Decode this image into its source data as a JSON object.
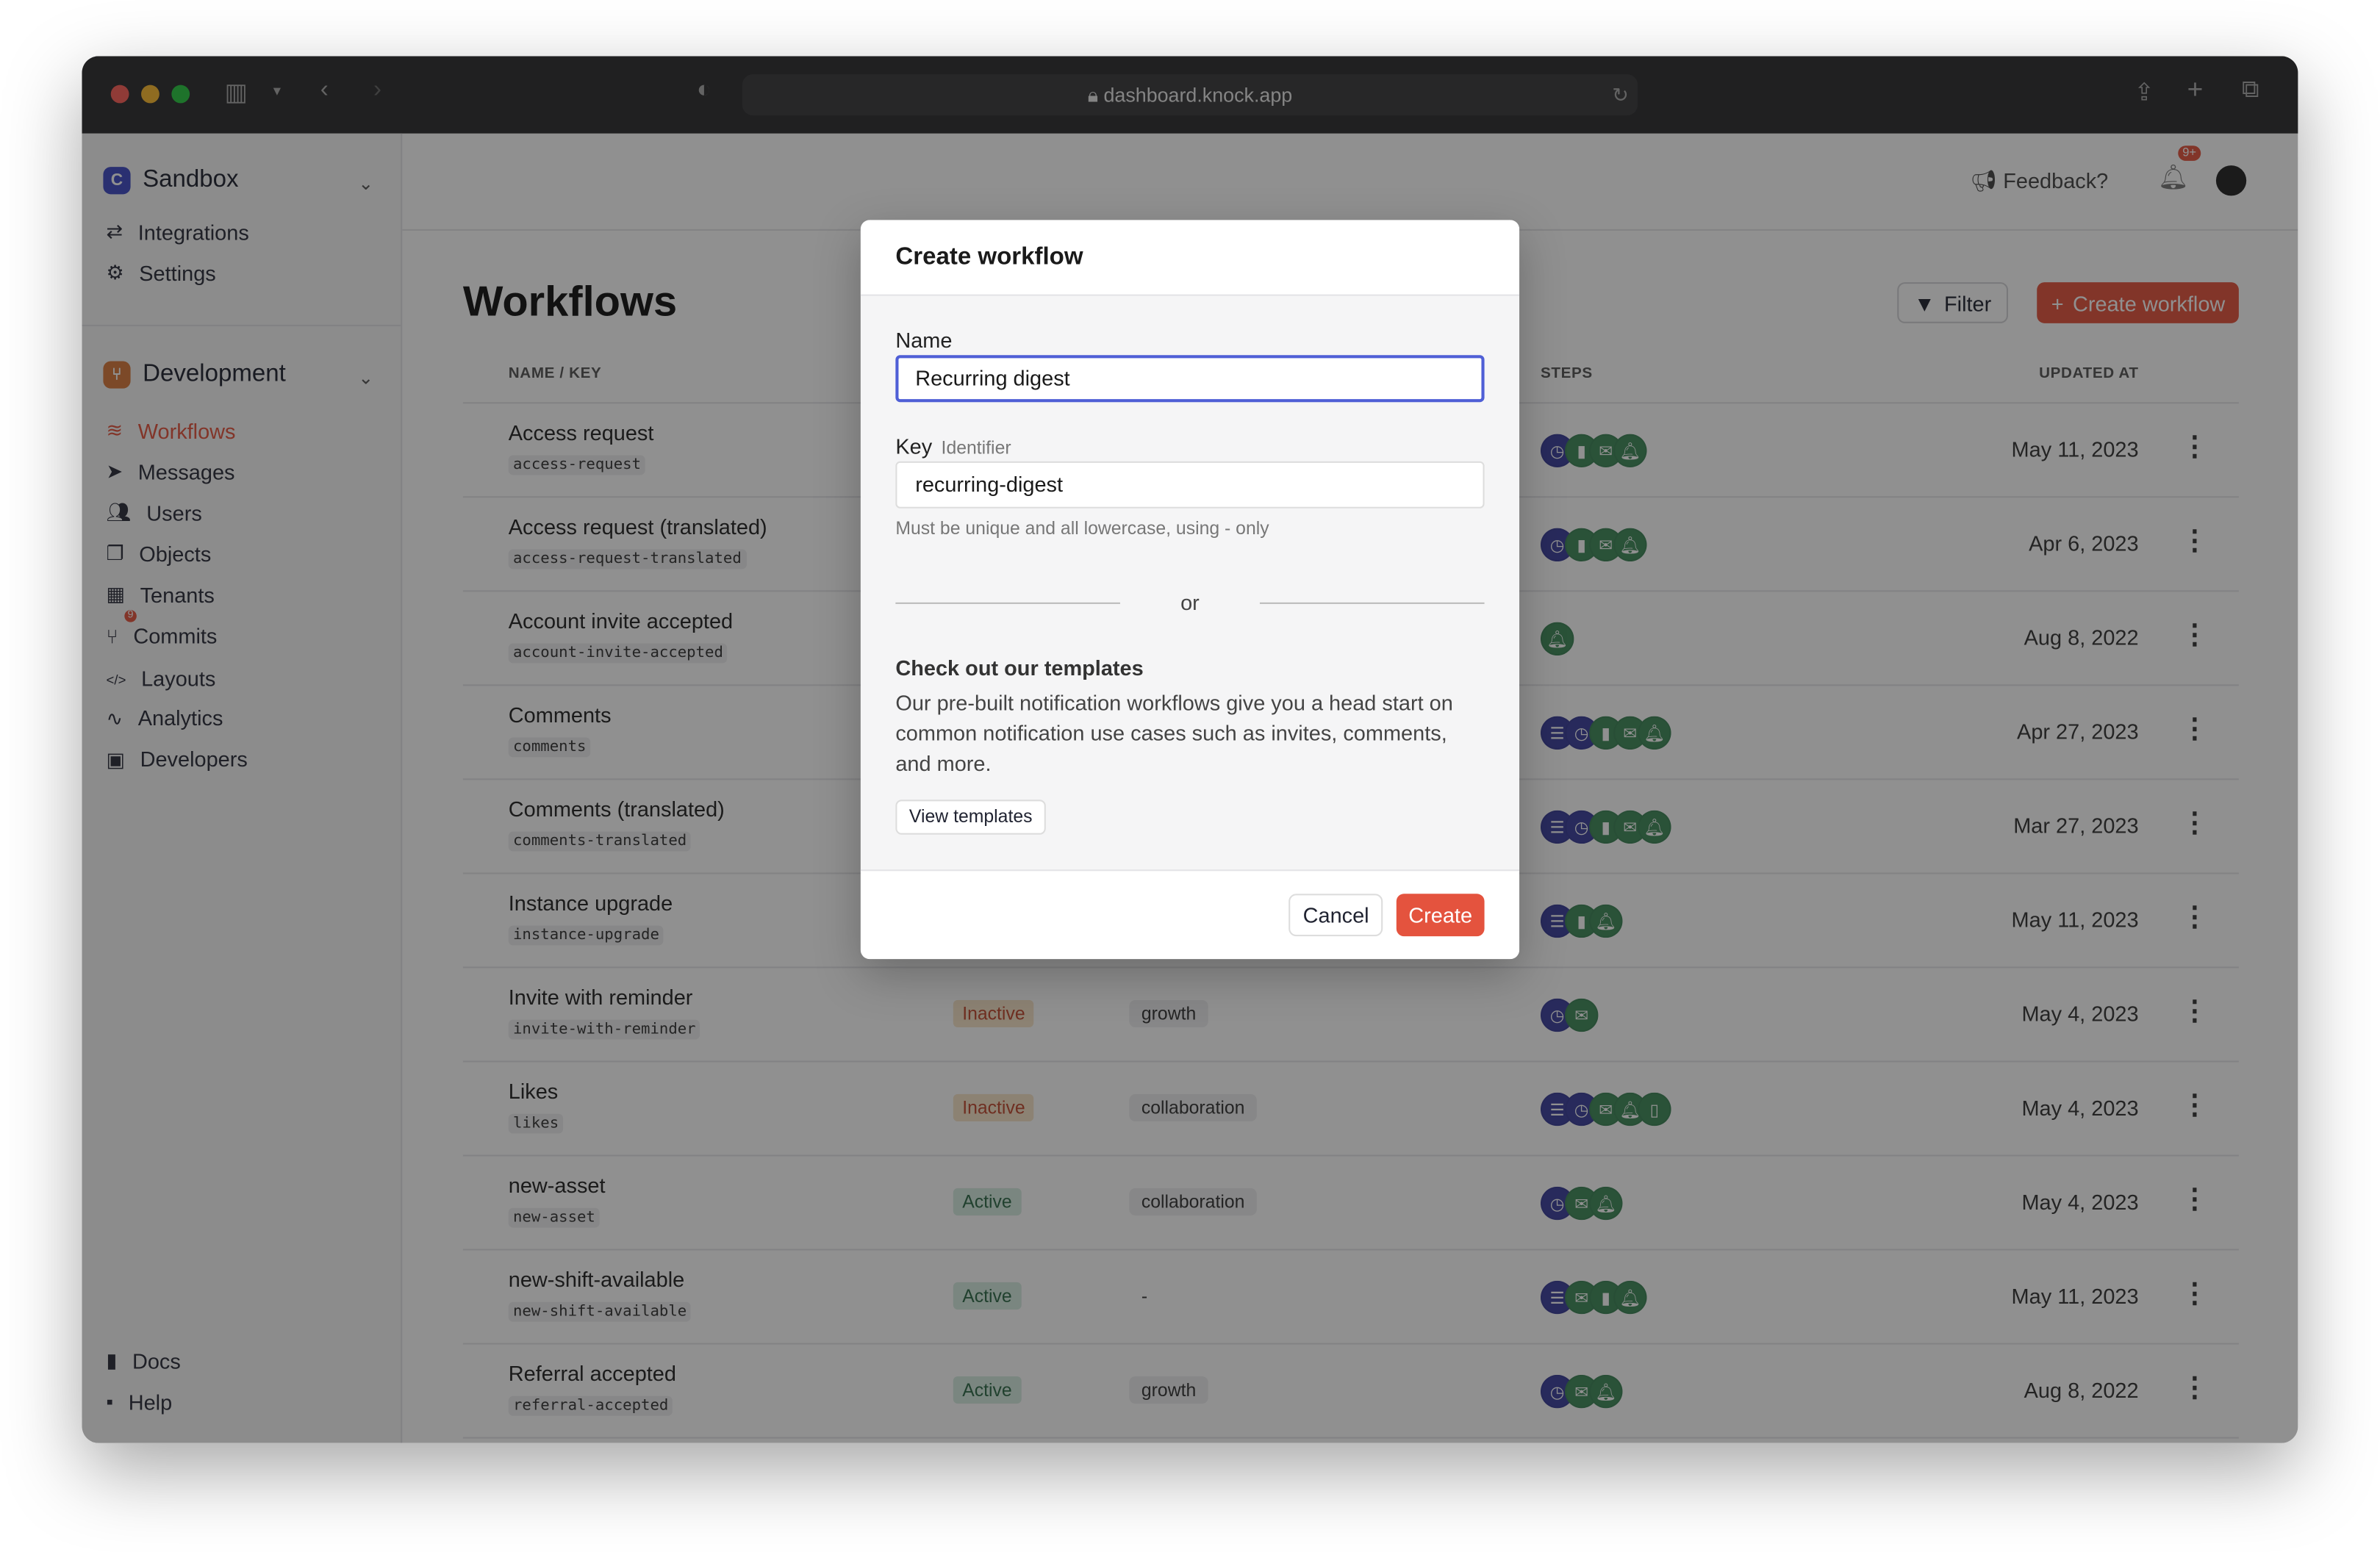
{
  "browser": {
    "url": "dashboard.knock.app"
  },
  "sidebar": {
    "workspace": "Sandbox",
    "workspace_logo": "C",
    "top_items": [
      {
        "label": "Integrations",
        "icon": "arrows-exchange-icon"
      },
      {
        "label": "Settings",
        "icon": "gear-icon"
      }
    ],
    "environment": "Development",
    "items": [
      {
        "label": "Workflows",
        "icon": "layers-icon",
        "active": true
      },
      {
        "label": "Messages",
        "icon": "paper-plane-icon"
      },
      {
        "label": "Users",
        "icon": "users-icon"
      },
      {
        "label": "Objects",
        "icon": "objects-icon"
      },
      {
        "label": "Tenants",
        "icon": "building-icon"
      },
      {
        "label": "Commits",
        "icon": "git-branch-icon",
        "badge": "9"
      },
      {
        "label": "Layouts",
        "icon": "code-icon"
      },
      {
        "label": "Analytics",
        "icon": "pulse-icon"
      },
      {
        "label": "Developers",
        "icon": "terminal-icon"
      }
    ],
    "bottom_items": [
      {
        "label": "Docs",
        "icon": "book-icon"
      },
      {
        "label": "Help",
        "icon": "chat-icon"
      }
    ]
  },
  "header": {
    "feedback": "Feedback?",
    "notifications_badge": "9+"
  },
  "page": {
    "title": "Workflows",
    "filter": "Filter",
    "create": "Create workflow"
  },
  "table": {
    "columns": {
      "name": "NAME / KEY",
      "steps": "STEPS",
      "updated": "UPDATED AT"
    },
    "rows": [
      {
        "name": "Access request",
        "key": "access-request",
        "status": "",
        "category": "",
        "steps": [
          "delay",
          "chat",
          "email",
          "in-app"
        ],
        "updated": "May 11, 2023"
      },
      {
        "name": "Access request (translated)",
        "key": "access-request-translated",
        "status": "",
        "category": "",
        "steps": [
          "delay",
          "chat",
          "email",
          "in-app"
        ],
        "updated": "Apr 6, 2023"
      },
      {
        "name": "Account invite accepted",
        "key": "account-invite-accepted",
        "status": "",
        "category": "",
        "steps": [
          "in-app"
        ],
        "updated": "Aug 8, 2022"
      },
      {
        "name": "Comments",
        "key": "comments",
        "status": "",
        "category": "",
        "steps": [
          "batch",
          "delay",
          "chat",
          "email",
          "in-app"
        ],
        "updated": "Apr 27, 2023"
      },
      {
        "name": "Comments (translated)",
        "key": "comments-translated",
        "status": "",
        "category": "",
        "steps": [
          "batch",
          "delay",
          "chat",
          "email",
          "in-app"
        ],
        "updated": "Mar 27, 2023"
      },
      {
        "name": "Instance upgrade",
        "key": "instance-upgrade",
        "status": "",
        "category": "",
        "steps": [
          "batch",
          "chat",
          "in-app"
        ],
        "updated": "May 11, 2023"
      },
      {
        "name": "Invite with reminder",
        "key": "invite-with-reminder",
        "status": "Inactive",
        "category": "growth",
        "steps": [
          "delay",
          "email"
        ],
        "updated": "May 4, 2023"
      },
      {
        "name": "Likes",
        "key": "likes",
        "status": "Inactive",
        "category": "collaboration",
        "steps": [
          "batch",
          "delay",
          "email",
          "in-app",
          "sms"
        ],
        "updated": "May 4, 2023"
      },
      {
        "name": "new-asset",
        "key": "new-asset",
        "status": "Active",
        "category": "collaboration",
        "steps": [
          "delay",
          "email",
          "in-app"
        ],
        "updated": "May 4, 2023"
      },
      {
        "name": "new-shift-available",
        "key": "new-shift-available",
        "status": "Active",
        "category": "-",
        "steps": [
          "batch",
          "email",
          "chat",
          "in-app"
        ],
        "updated": "May 11, 2023"
      },
      {
        "name": "Referral accepted",
        "key": "referral-accepted",
        "status": "Active",
        "category": "growth",
        "steps": [
          "delay",
          "email",
          "in-app"
        ],
        "updated": "Aug 8, 2022"
      }
    ]
  },
  "modal": {
    "title": "Create workflow",
    "name_label": "Name",
    "name_value": "Recurring digest",
    "key_label": "Key",
    "key_sublabel": "Identifier",
    "key_value": "recurring-digest",
    "key_hint": "Must be unique and all lowercase, using - only",
    "or": "or",
    "templates_title": "Check out our templates",
    "templates_text": "Our pre-built notification workflows give you a head start on common notification use cases such as invites, comments, and more.",
    "view_templates": "View templates",
    "cancel": "Cancel",
    "create": "Create"
  },
  "colors": {
    "accent": "#e4533e",
    "focus": "#4f5fd6",
    "step_function": "#3b3f9e",
    "step_channel": "#3f8a5a"
  }
}
